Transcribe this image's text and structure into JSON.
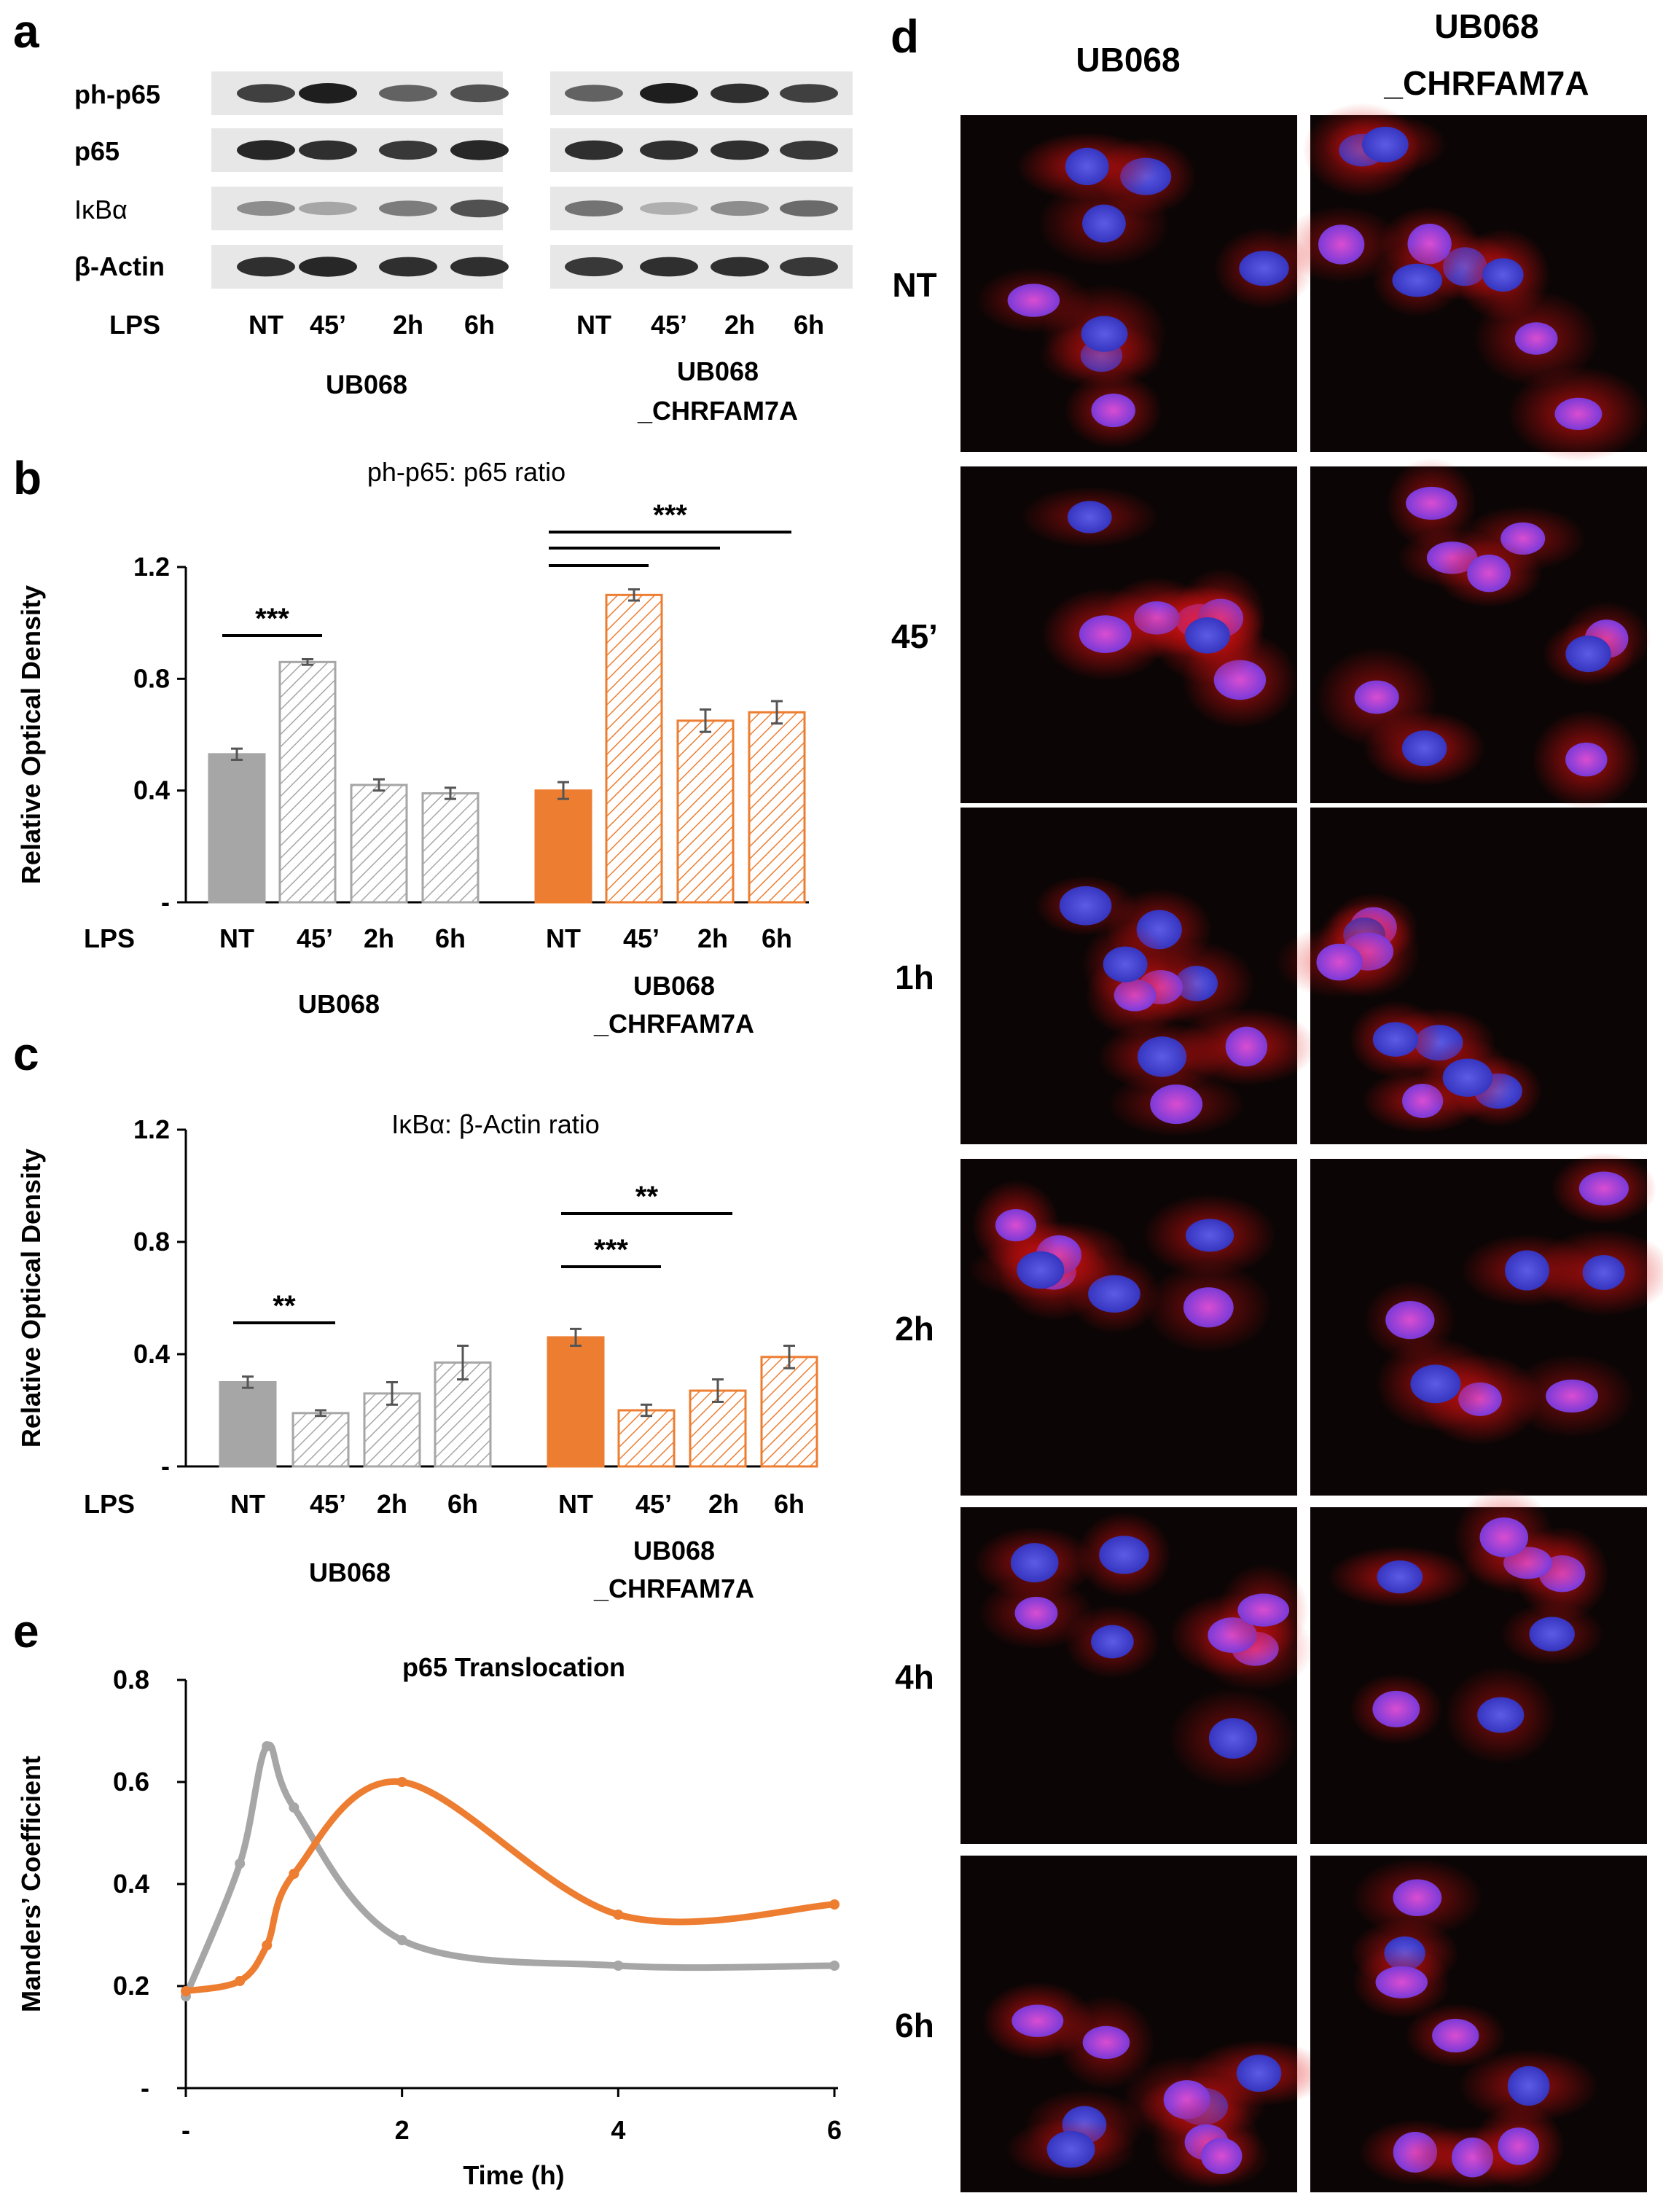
{
  "panel_letters": {
    "a": "a",
    "b": "b",
    "c": "c",
    "d": "d",
    "e": "e"
  },
  "blot": {
    "rows": [
      "ph-p65",
      "p65",
      "IκBα",
      "β-Actin"
    ],
    "lps_label": "LPS",
    "lanes": [
      "NT",
      "45’",
      "2h",
      "6h"
    ],
    "group1": "UB068",
    "group2_line1": "UB068",
    "group2_line2": "_CHRFAM7A"
  },
  "chart_data": [
    {
      "type": "bar",
      "panel": "b",
      "title": "ph-p65: p65 ratio",
      "ylabel": "Relative Optical Density",
      "ylim": [
        0,
        1.2
      ],
      "yticks": [
        "-",
        "0.4",
        "0.8",
        "1.2"
      ],
      "lps_label": "LPS",
      "categories": [
        "NT",
        "45’",
        "2h",
        "6h"
      ],
      "group_labels": [
        [
          "UB068"
        ],
        [
          "UB068",
          "_CHRFAM7A"
        ]
      ],
      "series": [
        {
          "values": [
            0.53,
            0.86,
            0.42,
            0.39
          ],
          "errors": [
            0.02,
            0.01,
            0.02,
            0.02
          ]
        },
        {
          "values": [
            0.4,
            1.1,
            0.65,
            0.68
          ],
          "errors": [
            0.03,
            0.02,
            0.04,
            0.04
          ]
        }
      ],
      "significance": [
        {
          "group": 0,
          "from": 0,
          "to": 1,
          "label": "***"
        },
        {
          "group": 1,
          "from": 0,
          "to": 1,
          "label": ""
        },
        {
          "group": 1,
          "from": 0,
          "to": 2,
          "label": ""
        },
        {
          "group": 1,
          "from": 0,
          "to": 3,
          "label": "***"
        }
      ],
      "colors": {
        "group1": "#a6a6a6",
        "group2": "#ed7d31"
      }
    },
    {
      "type": "bar",
      "panel": "c",
      "title": "IκBα: β-Actin ratio",
      "ylabel": "Relative Optical Density",
      "ylim": [
        0,
        1.2
      ],
      "yticks": [
        "-",
        "0.4",
        "0.8",
        "1.2"
      ],
      "lps_label": "LPS",
      "categories": [
        "NT",
        "45’",
        "2h",
        "6h"
      ],
      "group_labels": [
        [
          "UB068"
        ],
        [
          "UB068",
          "_CHRFAM7A"
        ]
      ],
      "series": [
        {
          "values": [
            0.3,
            0.19,
            0.26,
            0.37
          ],
          "errors": [
            0.02,
            0.01,
            0.04,
            0.06
          ]
        },
        {
          "values": [
            0.46,
            0.2,
            0.27,
            0.39
          ],
          "errors": [
            0.03,
            0.02,
            0.04,
            0.04
          ]
        }
      ],
      "significance": [
        {
          "group": 0,
          "from": 0,
          "to": 1,
          "label": "**"
        },
        {
          "group": 1,
          "from": 0,
          "to": 1,
          "label": "***"
        },
        {
          "group": 1,
          "from": 0,
          "to": 2,
          "label": "**"
        }
      ],
      "colors": {
        "group1": "#a6a6a6",
        "group2": "#ed7d31"
      }
    },
    {
      "type": "line",
      "panel": "e",
      "title": "p65 Translocation",
      "xlabel": "Time (h)",
      "ylabel": "Manders’ Coefficient",
      "xlim": [
        0,
        6
      ],
      "ylim": [
        0,
        0.8
      ],
      "xticks": [
        {
          "v": 0,
          "label": "-"
        },
        {
          "v": 2,
          "label": "2"
        },
        {
          "v": 4,
          "label": "4"
        },
        {
          "v": 6,
          "label": "6"
        }
      ],
      "yticks": [
        {
          "v": 0,
          "label": "-"
        },
        {
          "v": 0.2,
          "label": "0.2"
        },
        {
          "v": 0.4,
          "label": "0.4"
        },
        {
          "v": 0.6,
          "label": "0.6"
        },
        {
          "v": 0.8,
          "label": "0.8"
        }
      ],
      "series": [
        {
          "color": "#a6a6a6",
          "x": [
            0,
            0.5,
            0.75,
            1,
            2,
            4,
            6
          ],
          "y": [
            0.18,
            0.44,
            0.67,
            0.55,
            0.29,
            0.24,
            0.24
          ]
        },
        {
          "color": "#ed7d31",
          "x": [
            0,
            0.5,
            0.75,
            1,
            2,
            4,
            6
          ],
          "y": [
            0.19,
            0.21,
            0.28,
            0.42,
            0.6,
            0.34,
            0.36
          ]
        }
      ]
    }
  ],
  "microscopy": {
    "col1": "UB068",
    "col2_line1": "UB068",
    "col2_line2": "_CHRFAM7A",
    "rows": [
      "NT",
      "45’",
      "1h",
      "2h",
      "4h",
      "6h"
    ]
  }
}
